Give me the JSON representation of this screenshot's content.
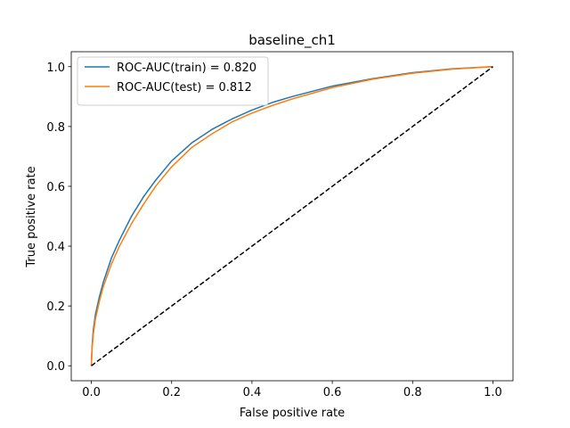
{
  "chart_data": {
    "type": "line",
    "title": "baseline_ch1",
    "xlabel": "False positive rate",
    "ylabel": "True positive rate",
    "xlim": [
      -0.05,
      1.05
    ],
    "ylim": [
      -0.05,
      1.05
    ],
    "xticks": [
      0.0,
      0.2,
      0.4,
      0.6,
      0.8,
      1.0
    ],
    "yticks": [
      0.0,
      0.2,
      0.4,
      0.6,
      0.8,
      1.0
    ],
    "xtick_labels": [
      "0.0",
      "0.2",
      "0.4",
      "0.6",
      "0.8",
      "1.0"
    ],
    "ytick_labels": [
      "0.0",
      "0.2",
      "0.4",
      "0.6",
      "0.8",
      "1.0"
    ],
    "grid": false,
    "legend_position": "top-left",
    "series": [
      {
        "name": "ROC-AUC(train) = 0.820",
        "color": "#1f77b4",
        "style": "solid",
        "x": [
          0.0,
          0.002,
          0.005,
          0.01,
          0.02,
          0.03,
          0.05,
          0.07,
          0.1,
          0.13,
          0.16,
          0.2,
          0.25,
          0.3,
          0.35,
          0.4,
          0.45,
          0.5,
          0.6,
          0.7,
          0.8,
          0.9,
          1.0
        ],
        "y": [
          0.0,
          0.07,
          0.12,
          0.17,
          0.23,
          0.28,
          0.36,
          0.42,
          0.5,
          0.565,
          0.62,
          0.685,
          0.745,
          0.79,
          0.825,
          0.855,
          0.88,
          0.9,
          0.935,
          0.96,
          0.98,
          0.993,
          1.0
        ]
      },
      {
        "name": "ROC-AUC(test) = 0.812",
        "color": "#ff7f0e",
        "style": "solid",
        "x": [
          0.0,
          0.002,
          0.005,
          0.01,
          0.02,
          0.03,
          0.05,
          0.07,
          0.1,
          0.13,
          0.16,
          0.2,
          0.25,
          0.3,
          0.35,
          0.4,
          0.45,
          0.5,
          0.6,
          0.7,
          0.8,
          0.9,
          1.0
        ],
        "y": [
          0.0,
          0.06,
          0.105,
          0.155,
          0.215,
          0.265,
          0.34,
          0.4,
          0.475,
          0.54,
          0.6,
          0.665,
          0.73,
          0.775,
          0.815,
          0.845,
          0.87,
          0.892,
          0.93,
          0.958,
          0.978,
          0.992,
          1.0
        ]
      },
      {
        "name": "",
        "color": "#000000",
        "style": "dashed",
        "x": [
          0.0,
          1.0
        ],
        "y": [
          0.0,
          1.0
        ]
      }
    ]
  }
}
